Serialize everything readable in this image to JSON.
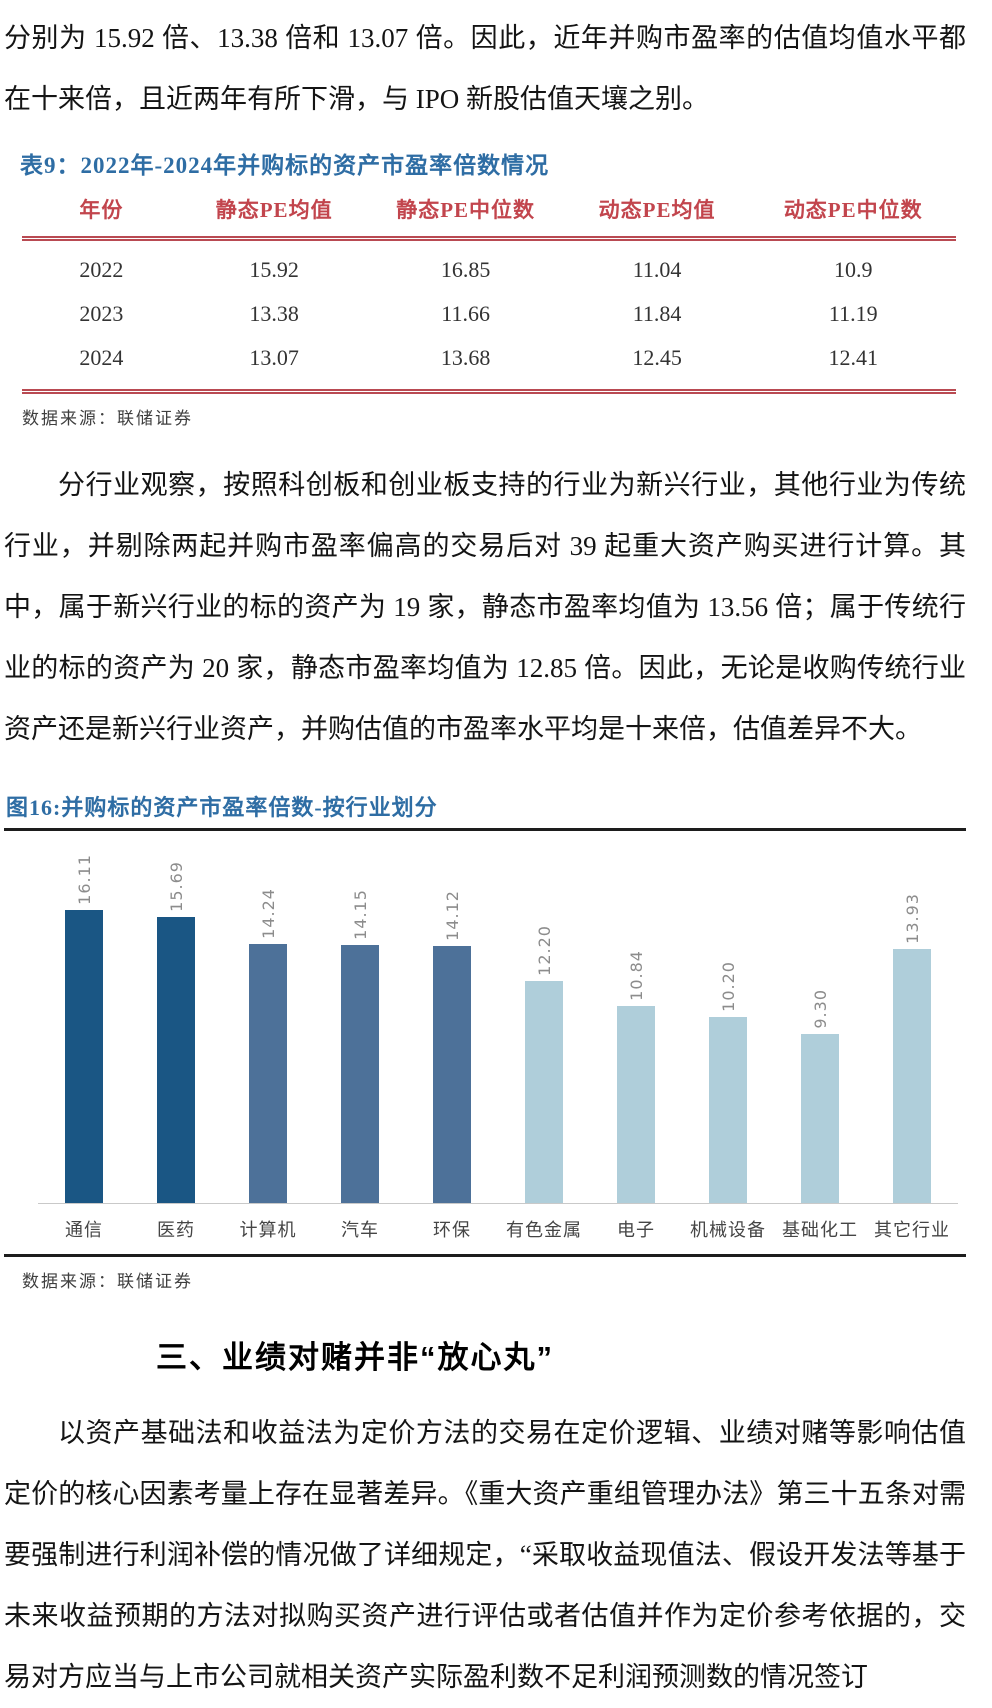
{
  "paragraphs": {
    "top": "分别为 15.92 倍、13.38 倍和 13.07 倍。因此，近年并购市盈率的估值均值水平都在十来倍，且近两年有所下滑，与 IPO 新股估值天壤之别。",
    "mid": "分行业观察，按照科创板和创业板支持的行业为新兴行业，其他行业为传统行业，并剔除两起并购市盈率偏高的交易后对 39 起重大资产购买进行计算。其中，属于新兴行业的标的资产为 19 家，静态市盈率均值为 13.56 倍；属于传统行业的标的资产为 20 家，静态市盈率均值为 12.85 倍。因此，无论是收购传统行业资产还是新兴行业资产，并购估值的市盈率水平均是十来倍，估值差异不大。",
    "bottom": "以资产基础法和收益法为定价方法的交易在定价逻辑、业绩对赌等影响估值定价的核心因素考量上存在显著差异。《重大资产重组管理办法》第三十五条对需要强制进行利润补偿的情况做了详细规定，“采取收益现值法、假设开发法等基于未来收益预期的方法对拟购买资产进行评估或者估值并作为定价参考依据的，交易对方应当与上市公司就相关资产实际盈利数不足利润预测数的情况签订"
  },
  "table": {
    "title": "表9：2022年-2024年并购标的资产市盈率倍数情况",
    "headers": [
      "年份",
      "静态PE均值",
      "静态PE中位数",
      "动态PE均值",
      "动态PE中位数"
    ],
    "rows": [
      [
        "2022",
        "15.92",
        "16.85",
        "11.04",
        "10.9"
      ],
      [
        "2023",
        "13.38",
        "11.66",
        "11.84",
        "11.19"
      ],
      [
        "2024",
        "13.07",
        "13.68",
        "12.45",
        "12.41"
      ]
    ],
    "source": "数据来源：联储证券"
  },
  "figure": {
    "title": "图16:并购标的资产市盈率倍数-按行业划分",
    "source": "数据来源：联储证券"
  },
  "chart_data": {
    "type": "bar",
    "title": "并购标的资产市盈率倍数-按行业划分",
    "categories": [
      "通信",
      "医药",
      "计算机",
      "汽车",
      "环保",
      "有色金属",
      "电子",
      "机械设备",
      "基础化工",
      "其它行业"
    ],
    "values": [
      16.11,
      15.69,
      14.24,
      14.15,
      14.12,
      12.2,
      10.84,
      10.2,
      9.3,
      13.93
    ],
    "value_label_format": "2-decimals",
    "value_label_rotation_deg": 90,
    "bar_colors": [
      "#1a5684",
      "#1a5684",
      "#4d7199",
      "#4d7199",
      "#4d7199",
      "#afceda",
      "#afceda",
      "#afceda",
      "#afceda",
      "#afceda"
    ],
    "xlabel": "",
    "ylabel": "",
    "ylim": [
      0,
      17
    ],
    "grid": false,
    "legend": false
  },
  "section": {
    "heading": "三、业绩对赌并非“放心丸”"
  },
  "colors": {
    "title_blue": "#2e6da4",
    "table_header_red": "#c2454d",
    "table_rule_red": "#b94a52",
    "figure_rule_dark": "#1d1d1d",
    "bar_dark_blue": "#1a5684",
    "bar_mid_blue": "#4d7199",
    "bar_light_blue": "#afceda",
    "value_label_gray": "#8c8c8c"
  }
}
